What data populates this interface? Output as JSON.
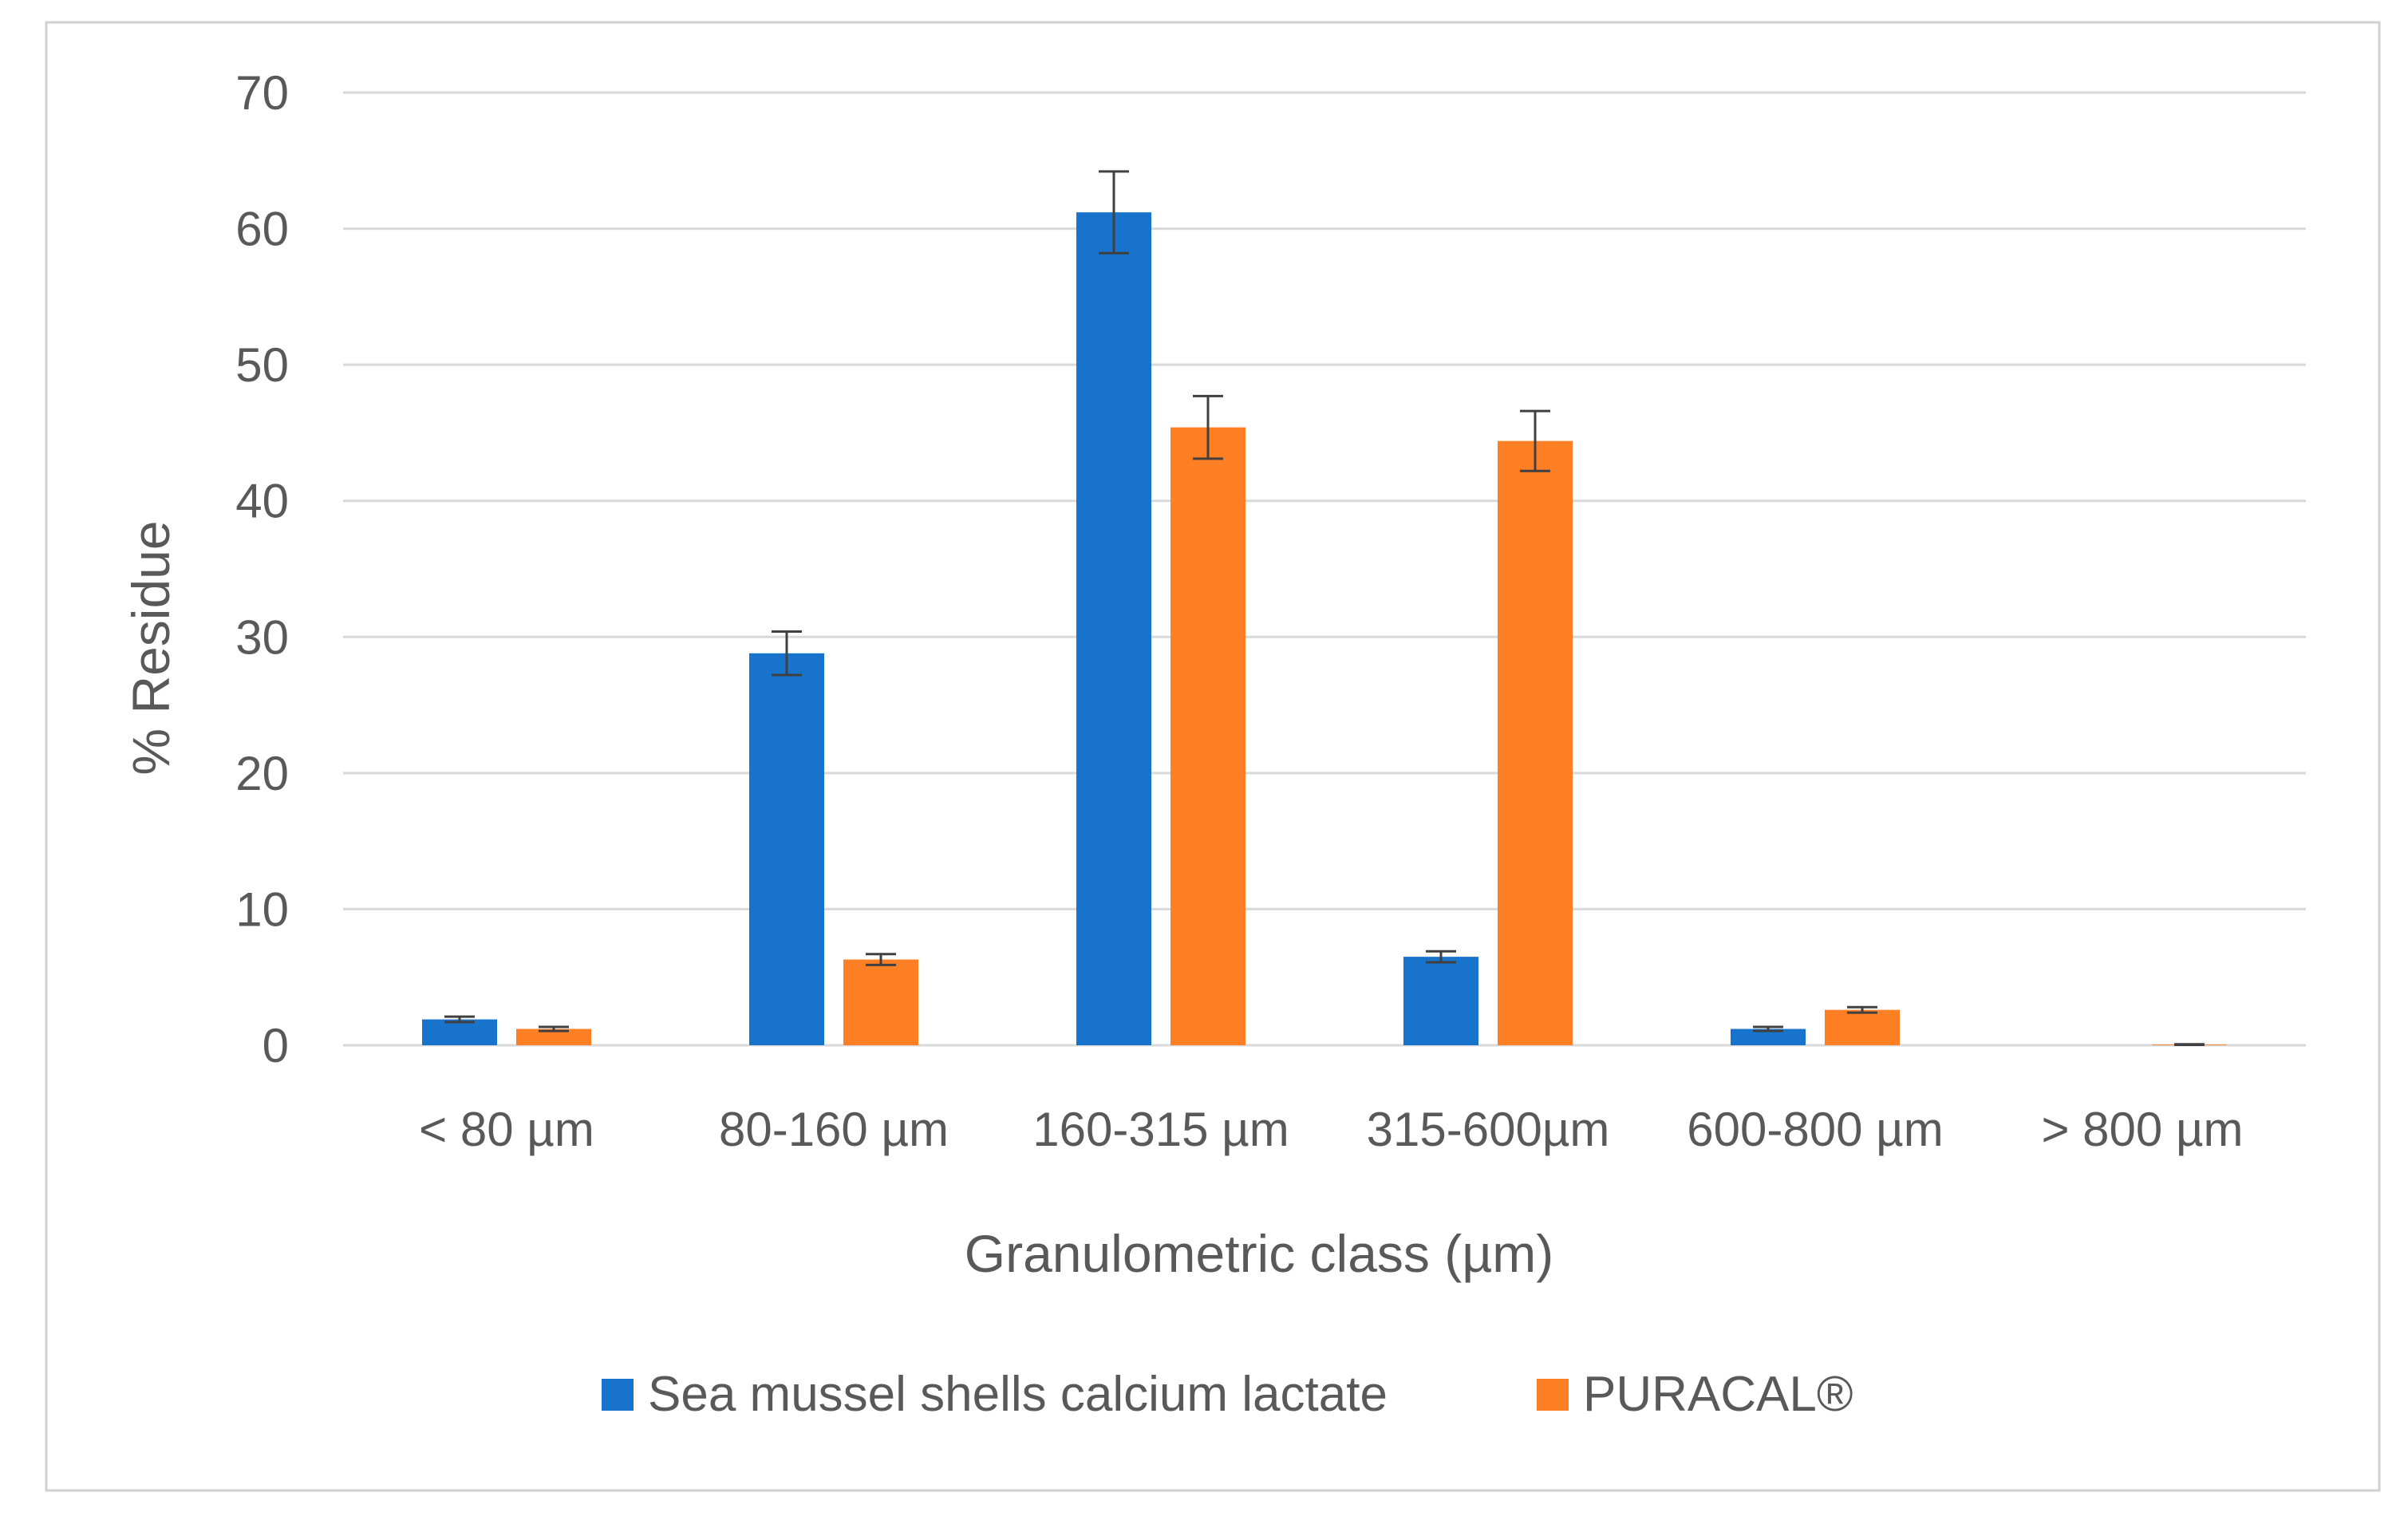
{
  "chart_data": {
    "type": "bar",
    "title": "",
    "xlabel": "Granulometric class (µm)",
    "ylabel": "% Residue",
    "ylim": [
      0,
      70
    ],
    "yticks": [
      0,
      10,
      20,
      30,
      40,
      50,
      60,
      70
    ],
    "ytick_labels": [
      "0",
      "10",
      "20",
      "30",
      "40",
      "50",
      "60",
      "70"
    ],
    "grid": true,
    "legend_position": "bottom",
    "categories": [
      "< 80 µm",
      "80-160 µm",
      "160-315 µm",
      "315-600µm",
      "600-800 µm",
      "> 800 µm"
    ],
    "series": [
      {
        "name": "Sea mussel shells calcium lactate",
        "color": "#1873CC",
        "values": [
          1.9,
          28.8,
          61.2,
          6.5,
          1.2,
          0
        ],
        "errors": [
          0.2,
          1.6,
          3.0,
          0.4,
          0.15,
          0
        ]
      },
      {
        "name": "PURACAL®",
        "color": "#FF7F24",
        "values": [
          1.2,
          6.3,
          45.4,
          44.4,
          2.6,
          0.05
        ],
        "errors": [
          0.15,
          0.4,
          2.3,
          2.2,
          0.2,
          0.02
        ]
      }
    ],
    "error_bar_color": "#404040",
    "gridline_color": "#D9D9D9",
    "text_color": "#595959",
    "frame_color": "#D0D0D0"
  }
}
